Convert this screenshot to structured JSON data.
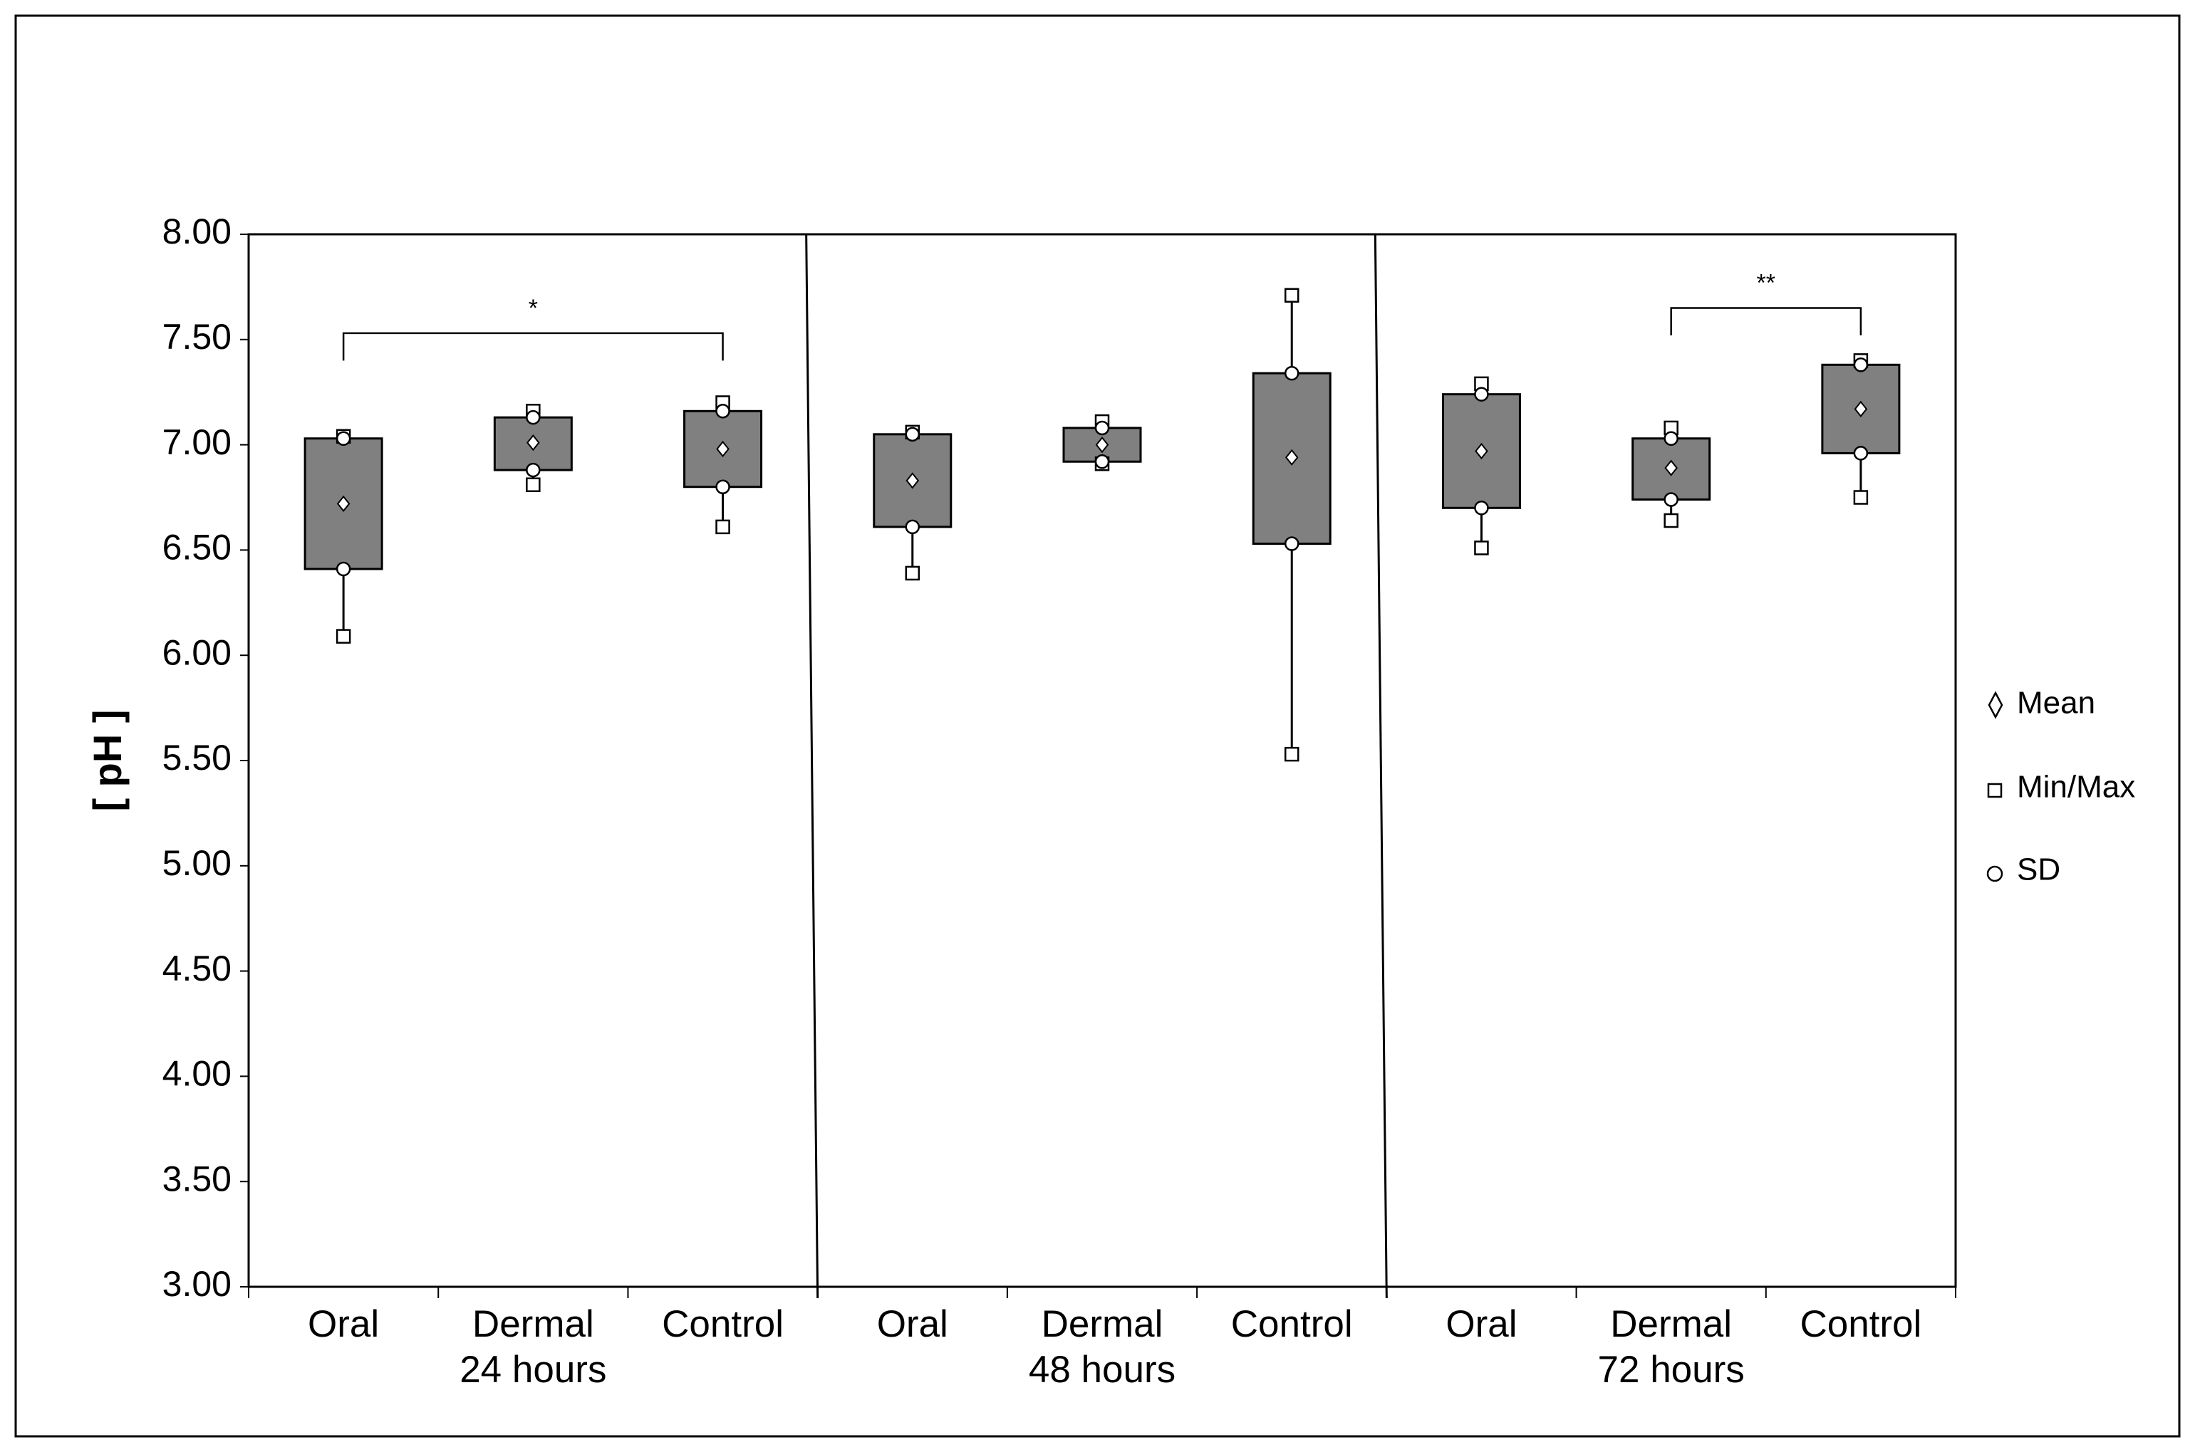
{
  "chart_data": {
    "type": "box",
    "ylabel": "[ pH ]",
    "xlabel": "",
    "ylim": [
      3.0,
      8.0
    ],
    "ytick_step": 0.5,
    "y_tick_labels": [
      "3.00",
      "3.50",
      "4.00",
      "4.50",
      "5.00",
      "5.50",
      "6.00",
      "6.50",
      "7.00",
      "7.50",
      "8.00"
    ],
    "time_groups": [
      "24 hours",
      "48 hours",
      "72 hours"
    ],
    "categories": [
      "Oral",
      "Dermal",
      "Control"
    ],
    "series": [
      {
        "time": "24 hours",
        "category": "Oral",
        "min": 6.09,
        "sd_low": 6.41,
        "mean": 6.72,
        "sd_high": 7.03,
        "max": 7.04
      },
      {
        "time": "24 hours",
        "category": "Dermal",
        "min": 6.81,
        "sd_low": 6.88,
        "mean": 7.01,
        "sd_high": 7.13,
        "max": 7.16
      },
      {
        "time": "24 hours",
        "category": "Control",
        "min": 6.61,
        "sd_low": 6.8,
        "mean": 6.98,
        "sd_high": 7.16,
        "max": 7.2
      },
      {
        "time": "48 hours",
        "category": "Oral",
        "min": 6.39,
        "sd_low": 6.61,
        "mean": 6.83,
        "sd_high": 7.05,
        "max": 7.06
      },
      {
        "time": "48 hours",
        "category": "Dermal",
        "min": 6.91,
        "sd_low": 6.92,
        "mean": 7.0,
        "sd_high": 7.08,
        "max": 7.11
      },
      {
        "time": "48 hours",
        "category": "Control",
        "min": 5.53,
        "sd_low": 6.53,
        "mean": 6.94,
        "sd_high": 7.34,
        "max": 7.71
      },
      {
        "time": "72 hours",
        "category": "Oral",
        "min": 6.51,
        "sd_low": 6.7,
        "mean": 6.97,
        "sd_high": 7.24,
        "max": 7.29
      },
      {
        "time": "72 hours",
        "category": "Dermal",
        "min": 6.64,
        "sd_low": 6.74,
        "mean": 6.89,
        "sd_high": 7.03,
        "max": 7.08
      },
      {
        "time": "72 hours",
        "category": "Control",
        "min": 6.75,
        "sd_low": 6.96,
        "mean": 7.17,
        "sd_high": 7.38,
        "max": 7.4
      }
    ],
    "significance": [
      {
        "time": "24 hours",
        "from": "Oral",
        "to": "Control",
        "label": "*",
        "y_level": 7.53,
        "tick_bottom": 7.4
      },
      {
        "time": "72 hours",
        "from": "Dermal",
        "to": "Control",
        "label": "**",
        "y_level": 7.65,
        "tick_bottom": 7.52
      }
    ],
    "legend": {
      "position": "right",
      "items": [
        {
          "symbol": "diamond",
          "label": "Mean"
        },
        {
          "symbol": "square",
          "label": "Min/Max"
        },
        {
          "symbol": "circle",
          "label": "SD"
        }
      ]
    },
    "colors": {
      "box": "#808080",
      "stroke": "#000000",
      "marker_fill": "#ffffff",
      "background": "#ffffff"
    },
    "grid": false
  }
}
